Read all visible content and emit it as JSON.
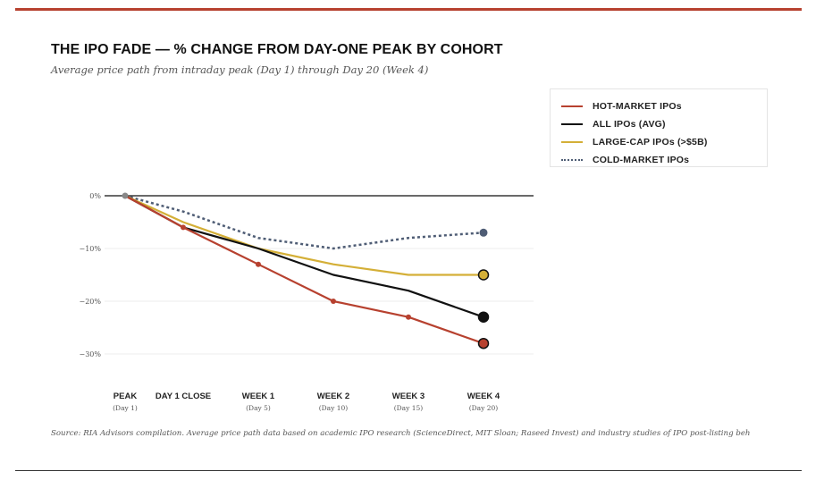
{
  "header": {
    "title": "THE IPO FADE — % CHANGE FROM DAY-ONE PEAK BY COHORT",
    "subtitle": "Average price path from intraday peak (Day 1) through Day 20 (Week 4)"
  },
  "legend": {
    "items": [
      {
        "label": "HOT-MARKET IPOs",
        "color": "#b7412f",
        "style": "solid"
      },
      {
        "label": "ALL IPOs (AVG)",
        "color": "#111111",
        "style": "solid"
      },
      {
        "label": "LARGE-CAP IPOs (>$5B)",
        "color": "#d4af37",
        "style": "solid"
      },
      {
        "label": "COLD-MARKET IPOs",
        "color": "#4f5d75",
        "style": "dotted"
      }
    ]
  },
  "chart_data": {
    "type": "line",
    "categories": [
      "PEAK",
      "DAY 1 CLOSE",
      "WEEK 1",
      "WEEK 2",
      "WEEK 3",
      "WEEK 4"
    ],
    "category_sublabels": [
      "(Day 1)",
      "",
      "(Day 5)",
      "(Day 10)",
      "(Day 15)",
      "(Day 20)"
    ],
    "y_ticks": [
      0,
      -10,
      -20,
      -30
    ],
    "y_tick_labels": [
      "0%",
      "−10%",
      "−20%",
      "−30%"
    ],
    "ylim": [
      -31,
      0
    ],
    "grid": true,
    "series": [
      {
        "name": "HOT-MARKET IPOs",
        "color": "#b7412f",
        "style": "solid",
        "values": [
          0,
          -6,
          -13,
          -20,
          -23,
          -28
        ]
      },
      {
        "name": "ALL IPOs (AVG)",
        "color": "#111111",
        "style": "solid",
        "values": [
          0,
          -6,
          -10,
          -15,
          -18,
          -23
        ]
      },
      {
        "name": "LARGE-CAP IPOs (>$5B)",
        "color": "#d4af37",
        "style": "solid",
        "values": [
          0,
          -5,
          -10,
          -13,
          -15,
          -15
        ]
      },
      {
        "name": "COLD-MARKET IPOs",
        "color": "#4f5d75",
        "style": "dotted",
        "values": [
          0,
          -3,
          -8,
          -10,
          -8,
          -7
        ]
      }
    ]
  },
  "footer": {
    "source": "Source: RIA Advisors compilation. Average price path data based on academic IPO research (ScienceDirect, MIT Sloan; Raseed Invest) and industry studies of IPO post-listing beh"
  }
}
